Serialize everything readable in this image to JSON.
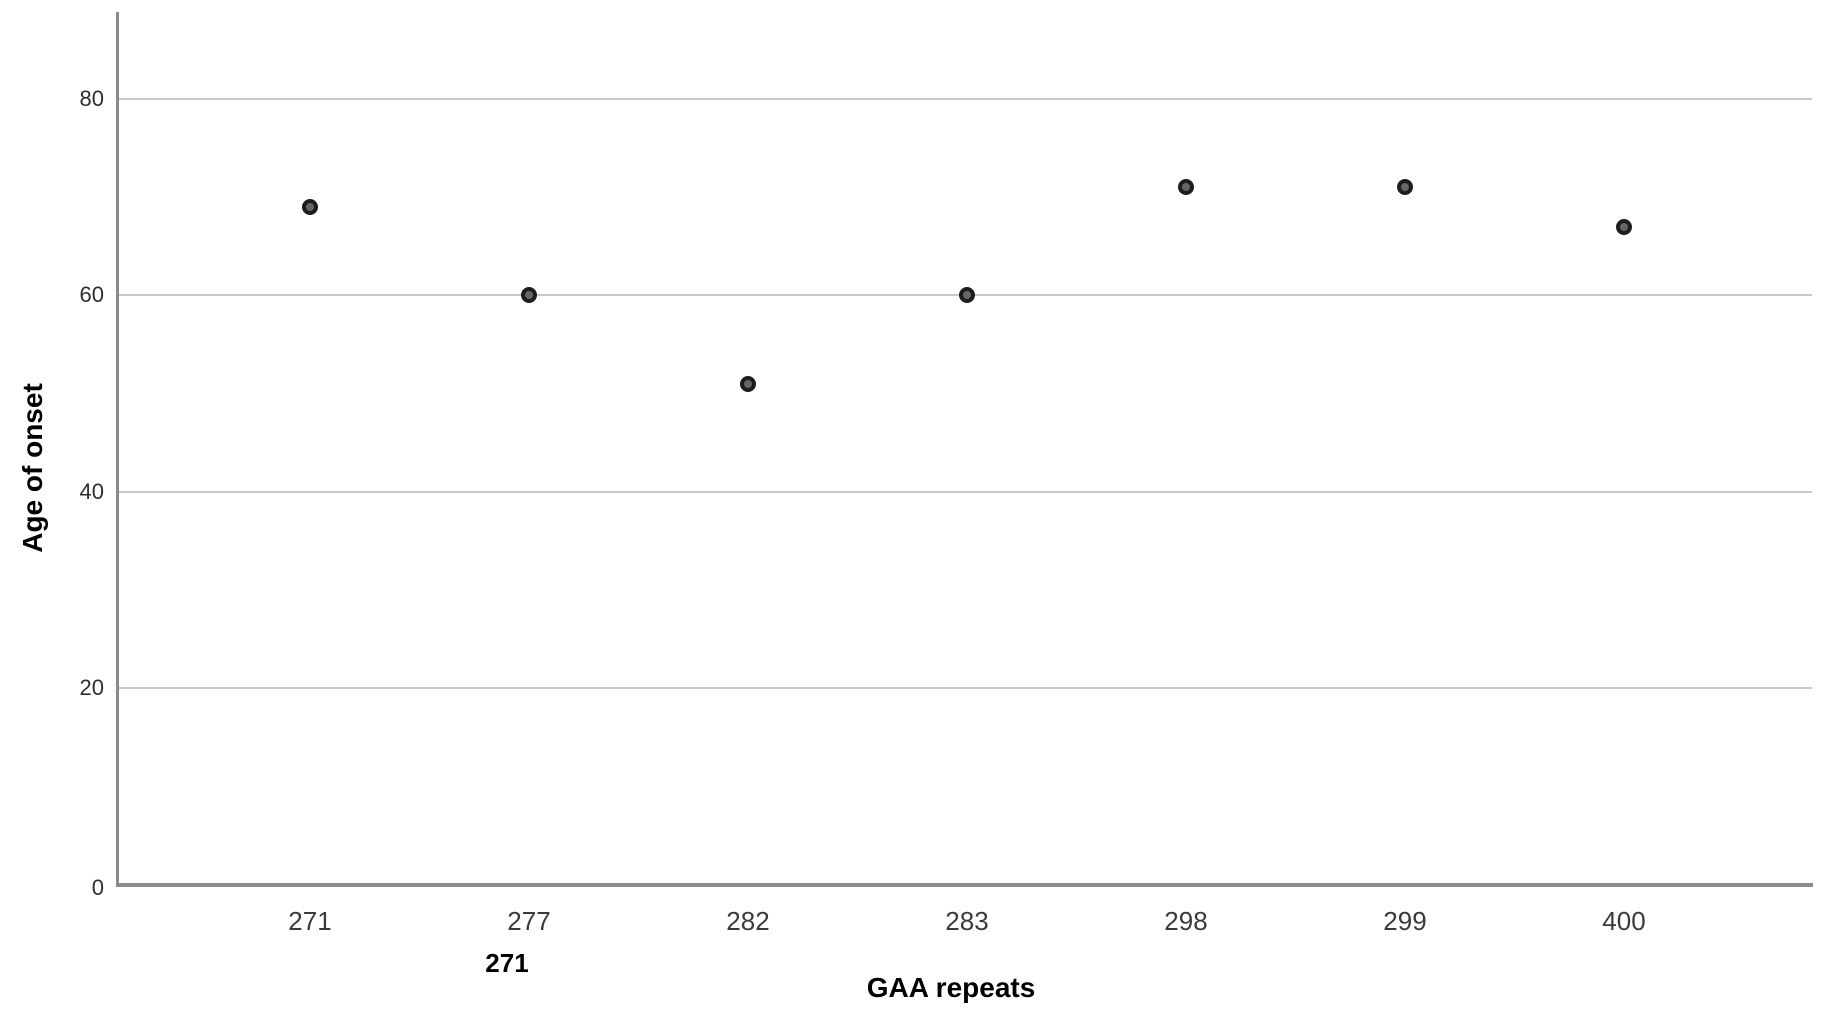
{
  "chart_data": {
    "type": "scatter",
    "title": "",
    "xlabel": "GAA repeats",
    "ylabel": "Age of onset",
    "categories": [
      "271",
      "277",
      "282",
      "283",
      "298",
      "299",
      "400"
    ],
    "values": [
      69,
      60,
      51,
      60,
      71,
      71,
      67
    ],
    "yticks": [
      0,
      20,
      40,
      60,
      80
    ],
    "ylim": [
      0,
      89
    ],
    "grid": "horizontal-only",
    "legend": "none",
    "annotation_below_axis": "271",
    "colors": {
      "point_fill": "#666666",
      "point_ring": "#1d1d1d",
      "gridline": "#c9c9c9",
      "axis": "#8b8b8b",
      "tick_text": "#2e2e2e",
      "title_text": "#000000"
    }
  }
}
